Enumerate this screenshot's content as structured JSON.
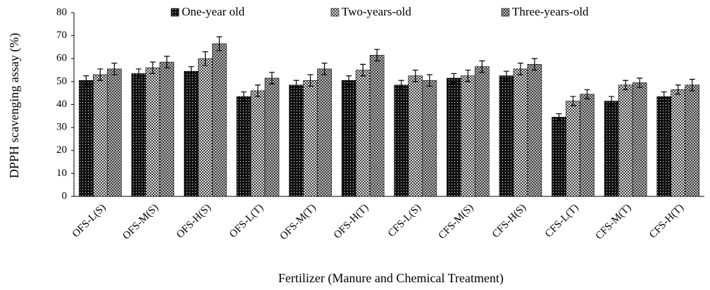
{
  "chart_data": {
    "type": "bar",
    "ylabel": "DPPH scavenging  assay (%)",
    "xlabel": "Fertilizer (Manure and Chemical Treatment)",
    "categories": [
      "OFS-L(S)",
      "OFS-M(S)",
      "OFS-H(S)",
      "OFS-L(T)",
      "OFS-M(T)",
      "OFS-H(T)",
      "CFS-L(S)",
      "CFS-M(S)",
      "CFS-H(S)",
      "CFS-L(T)",
      "CFS-M(T)",
      "CFS-H(T)"
    ],
    "series": [
      {
        "name": "One-year old",
        "color": "#111111",
        "values": [
          50.5,
          53.5,
          54.5,
          43.5,
          48.5,
          50.5,
          48.5,
          51.5,
          52.5,
          34.5,
          41.5,
          43.5
        ],
        "errors": [
          2,
          2,
          2,
          2,
          2,
          2,
          2,
          2,
          2,
          1.5,
          2,
          2
        ]
      },
      {
        "name": "Two-years-old",
        "color": "#ffffff",
        "values": [
          53,
          56,
          60,
          46,
          50.5,
          55,
          52.5,
          52.5,
          55.5,
          41.5,
          48.5,
          46.5
        ],
        "errors": [
          2.5,
          2.5,
          3,
          2.5,
          2.5,
          2.5,
          2.5,
          2.5,
          2.5,
          2,
          2,
          2
        ]
      },
      {
        "name": "Three-years-old",
        "color": "#333333",
        "values": [
          55.5,
          58.5,
          66.5,
          51.5,
          55.5,
          61.5,
          50.5,
          56.5,
          57.5,
          44.5,
          49.5,
          48.5
        ],
        "errors": [
          2.5,
          2.5,
          3,
          2.5,
          2.5,
          2.5,
          2.5,
          2.5,
          2.5,
          2,
          2,
          2.5
        ]
      }
    ],
    "ylim": [
      0,
      80
    ],
    "yticks": [
      0,
      10,
      20,
      30,
      40,
      50,
      60,
      70,
      80
    ],
    "grid": false
  }
}
